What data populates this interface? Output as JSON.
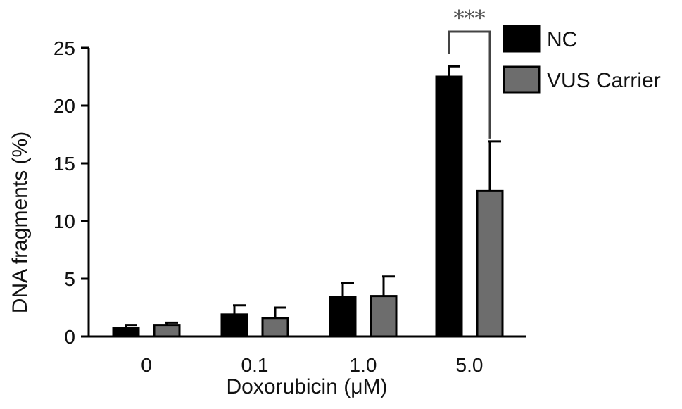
{
  "chart_data": {
    "type": "bar",
    "categories": [
      "0",
      "0.1",
      "1.0",
      "5.0"
    ],
    "series": [
      {
        "name": "NC",
        "values": [
          0.7,
          1.9,
          3.4,
          22.5
        ],
        "errors": [
          0.3,
          0.8,
          1.2,
          0.9
        ],
        "color": "#000000"
      },
      {
        "name": "VUS Carrier",
        "values": [
          1.0,
          1.6,
          3.5,
          12.6
        ],
        "errors": [
          0.2,
          0.9,
          1.7,
          4.3
        ],
        "color": "#6d6d6d"
      }
    ],
    "xlabel": "Doxorubicin (μM)",
    "ylabel": "DNA fragments (%)",
    "ylim": [
      0,
      25
    ],
    "yticks": [
      "0",
      "5",
      "10",
      "15",
      "20",
      "25"
    ],
    "legend_position": "top-right",
    "grid": false,
    "annotations": [
      {
        "text": "***",
        "category": "5.0"
      }
    ]
  }
}
